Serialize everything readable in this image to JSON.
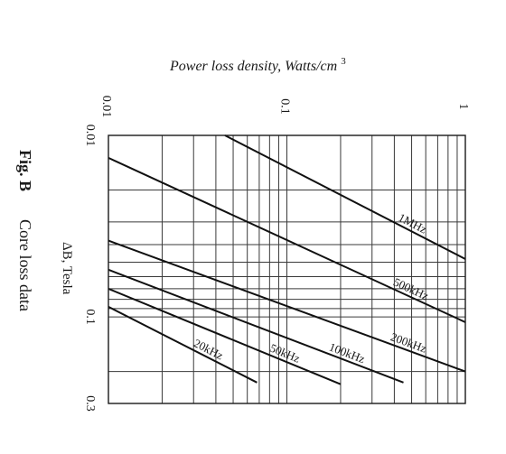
{
  "figure": {
    "label": "Fig. B",
    "caption": "Core loss data"
  },
  "chart_data": {
    "type": "line",
    "title": "",
    "xlabel": "Power loss density, Watts/cm",
    "xlabel_superscript": "3",
    "ylabel": "ΔB, Tesla",
    "x_scale": "log",
    "y_scale": "log",
    "xlim": [
      0.01,
      1
    ],
    "ylim": [
      0.01,
      0.3
    ],
    "grid": true,
    "x_ticks": [
      {
        "value": 0.01,
        "label": "0.01"
      },
      {
        "value": 0.1,
        "label": "0.1"
      },
      {
        "value": 1,
        "label": "1"
      }
    ],
    "y_ticks": [
      {
        "value": 0.01,
        "label": "0.01"
      },
      {
        "value": 0.1,
        "label": "0.1"
      },
      {
        "value": 0.3,
        "label": "0.3"
      }
    ],
    "series": [
      {
        "name": "1MHz",
        "points": [
          {
            "x": 0.045,
            "y": 0.01
          },
          {
            "x": 1.0,
            "y": 0.048
          }
        ]
      },
      {
        "name": "500kHz",
        "points": [
          {
            "x": 0.01,
            "y": 0.0133
          },
          {
            "x": 1.0,
            "y": 0.107
          }
        ]
      },
      {
        "name": "200kHz",
        "points": [
          {
            "x": 0.01,
            "y": 0.038
          },
          {
            "x": 1.0,
            "y": 0.2
          }
        ]
      },
      {
        "name": "100kHz",
        "points": [
          {
            "x": 0.01,
            "y": 0.055
          },
          {
            "x": 0.45,
            "y": 0.23
          }
        ]
      },
      {
        "name": "50kHz",
        "points": [
          {
            "x": 0.01,
            "y": 0.07
          },
          {
            "x": 0.2,
            "y": 0.235
          }
        ]
      },
      {
        "name": "20kHz",
        "points": [
          {
            "x": 0.01,
            "y": 0.088
          },
          {
            "x": 0.068,
            "y": 0.23
          }
        ]
      }
    ]
  }
}
